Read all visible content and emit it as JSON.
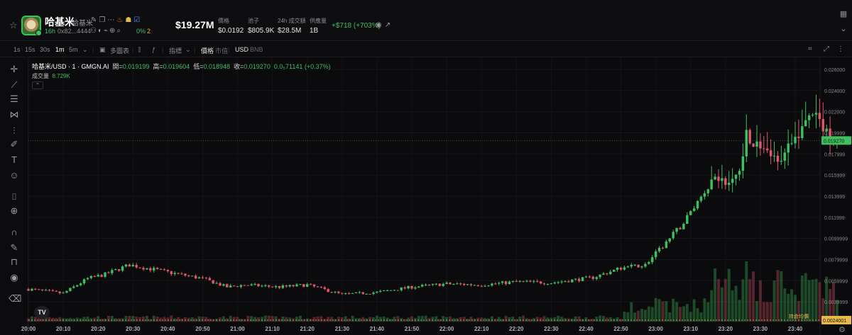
{
  "token": {
    "name": "哈基米",
    "symbol": "哈基米",
    "age": "16h",
    "address": "0x82...4444",
    "holder_pct": "0%",
    "count": "2",
    "market_cap": "$19.27M",
    "change": "+$718 (+703%)"
  },
  "stats": [
    {
      "label": "價格",
      "value": "$0.0192"
    },
    {
      "label": "池子",
      "value": "$805.9K"
    },
    {
      "label": "24h 成交額",
      "value": "$28.5M"
    },
    {
      "label": "供應量",
      "value": "1B"
    }
  ],
  "toolbar": {
    "intervals": [
      "1s",
      "15s",
      "30s",
      "1m",
      "5m"
    ],
    "active_interval": "1m",
    "multi_chart": "多圖表",
    "indicators": "指標",
    "price_label": "價格",
    "mcap_label": "市值",
    "usd_label": "USD",
    "bnb_label": "BNB"
  },
  "legend": {
    "pair": "哈基米/USD · 1 · GMGN.AI",
    "open_label": "開=",
    "open": "0.019199",
    "high_label": "高=",
    "high": "0.019604",
    "low_label": "低=",
    "low": "0.018948",
    "close_label": "收=",
    "close": "0.019270",
    "change": "0.0₅71141 (+0.37%)",
    "volume_label": "成交量",
    "volume": "8.729K"
  },
  "labels": {
    "avg_cost": "持倉均價",
    "tv": "TV"
  },
  "icons": {
    "favorite": "star-icon",
    "camera": "camera-icon",
    "fullscreen": "fullscreen-icon"
  },
  "colors": {
    "up": "#3fbf5f",
    "down": "#e0566b",
    "current_price": "#3fbf5f",
    "avg_cost": "#e5b94a"
  },
  "chart_data": {
    "type": "candlestick",
    "x_ticks": [
      "20:00",
      "20:10",
      "20:20",
      "20:30",
      "20:40",
      "20:50",
      "21:00",
      "21:10",
      "21:20",
      "21:30",
      "21:40",
      "21:50",
      "22:00",
      "22:10",
      "22:20",
      "22:30",
      "22:40",
      "22:50",
      "23:00",
      "23:10",
      "23:20",
      "23:30",
      "23:40"
    ],
    "y_ticks": [
      "0.026000",
      "0.024000",
      "0.022000",
      "0.019999",
      "0.017999",
      "0.015999",
      "0.013999",
      "0.011999",
      "0.0099999",
      "0.0079999",
      "0.0059999",
      "0.0039999"
    ],
    "ylim": [
      0.0024,
      0.0268
    ],
    "current_price": "0.019270",
    "avg_cost_price": "0.0024001",
    "anchors": [
      [
        0,
        0.0052
      ],
      [
        10,
        0.0048
      ],
      [
        17,
        0.0062
      ],
      [
        22,
        0.0066
      ],
      [
        29,
        0.0075
      ],
      [
        40,
        0.0068
      ],
      [
        50,
        0.0062
      ],
      [
        57,
        0.0054
      ],
      [
        62,
        0.0056
      ],
      [
        72,
        0.0054
      ],
      [
        80,
        0.0056
      ],
      [
        90,
        0.0047
      ],
      [
        100,
        0.0049
      ],
      [
        110,
        0.0054
      ],
      [
        120,
        0.0057
      ],
      [
        130,
        0.0056
      ],
      [
        140,
        0.0059
      ],
      [
        150,
        0.0058
      ],
      [
        162,
        0.0063
      ],
      [
        170,
        0.0072
      ],
      [
        177,
        0.0075
      ],
      [
        183,
        0.0096
      ],
      [
        188,
        0.0115
      ],
      [
        193,
        0.014
      ],
      [
        197,
        0.016
      ],
      [
        201,
        0.015
      ],
      [
        204,
        0.0165
      ],
      [
        206,
        0.02
      ],
      [
        208,
        0.019
      ],
      [
        211,
        0.0185
      ],
      [
        214,
        0.0175
      ],
      [
        217,
        0.018
      ],
      [
        221,
        0.02
      ],
      [
        225,
        0.022
      ],
      [
        228,
        0.0205
      ],
      [
        230,
        0.0195
      ],
      [
        232,
        0.0193
      ]
    ]
  }
}
